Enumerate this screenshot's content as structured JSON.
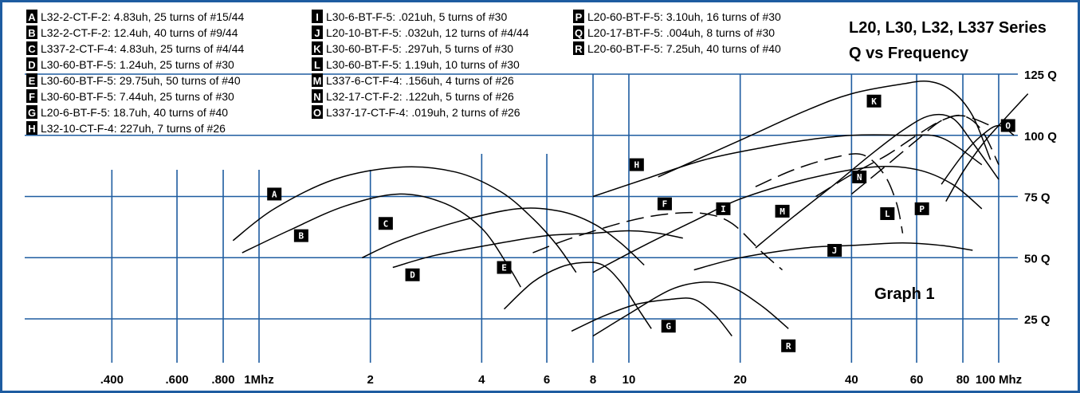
{
  "title_line1": "L20, L30, L32, L337 Series",
  "title_line2": "Q vs Frequency",
  "graph_label": "Graph 1",
  "colors": {
    "grid": "#1e5ca0",
    "curve": "#000000"
  },
  "chart_data": {
    "type": "line",
    "x_scale": "log",
    "xlim_mhz": [
      0.3,
      120
    ],
    "ylim": [
      0,
      125
    ],
    "x_ticks": [
      {
        "value": 0.4,
        "label": ".400"
      },
      {
        "value": 0.6,
        "label": ".600"
      },
      {
        "value": 0.8,
        "label": ".800"
      },
      {
        "value": 1,
        "label": "1Mhz"
      },
      {
        "value": 2,
        "label": "2"
      },
      {
        "value": 4,
        "label": "4"
      },
      {
        "value": 6,
        "label": "6"
      },
      {
        "value": 8,
        "label": "8"
      },
      {
        "value": 10,
        "label": "10"
      },
      {
        "value": 20,
        "label": "20"
      },
      {
        "value": 40,
        "label": "40"
      },
      {
        "value": 60,
        "label": "60"
      },
      {
        "value": 80,
        "label": "80"
      },
      {
        "value": 100,
        "label": "100 Mhz"
      }
    ],
    "y_ticks": [
      {
        "value": 25,
        "label": "25 Q"
      },
      {
        "value": 50,
        "label": "50 Q"
      },
      {
        "value": 75,
        "label": "75 Q"
      },
      {
        "value": 100,
        "label": "100 Q"
      },
      {
        "value": 125,
        "label": "125 Q"
      }
    ],
    "series": [
      {
        "letter": "A",
        "name": "L32-2-CT-F-2: 4.83uh, 25 turns of #15/44",
        "dashed": false,
        "label_at": [
          1.1,
          76
        ],
        "points": [
          [
            0.85,
            57
          ],
          [
            1.1,
            70
          ],
          [
            1.6,
            82
          ],
          [
            2.4,
            87
          ],
          [
            3.4,
            85
          ],
          [
            4.5,
            77
          ],
          [
            5.5,
            66
          ],
          [
            6.4,
            55
          ],
          [
            7.2,
            44
          ]
        ]
      },
      {
        "letter": "B",
        "name": "L32-2-CT-F-2: 12.4uh, 40 turns of #9/44",
        "dashed": false,
        "label_at": [
          1.3,
          59
        ],
        "points": [
          [
            0.9,
            52
          ],
          [
            1.2,
            61
          ],
          [
            1.7,
            71
          ],
          [
            2.4,
            76
          ],
          [
            3.2,
            72
          ],
          [
            4,
            62
          ],
          [
            4.7,
            47
          ],
          [
            5.1,
            38
          ]
        ]
      },
      {
        "letter": "C",
        "name": "L337-2-CT-F-4: 4.83uh, 25 turns of #4/44",
        "dashed": false,
        "label_at": [
          2.2,
          64
        ],
        "points": [
          [
            1.9,
            50
          ],
          [
            2.4,
            57
          ],
          [
            3.5,
            65
          ],
          [
            5,
            70
          ],
          [
            6.5,
            69
          ],
          [
            8,
            64
          ],
          [
            9.5,
            56
          ],
          [
            11,
            47
          ]
        ]
      },
      {
        "letter": "D",
        "name": "L30-60-BT-F-5: 1.24uh, 25 turns of #30",
        "dashed": false,
        "label_at": [
          2.6,
          43
        ],
        "points": [
          [
            2.3,
            46
          ],
          [
            3,
            51
          ],
          [
            4.5,
            56
          ],
          [
            6,
            59
          ],
          [
            8,
            60
          ],
          [
            10,
            61
          ],
          [
            12,
            60
          ],
          [
            14,
            58
          ]
        ]
      },
      {
        "letter": "E",
        "name": "L30-60-BT-F-5: 29.75uh, 50 turns of #40",
        "dashed": false,
        "label_at": [
          4.6,
          46
        ],
        "points": [
          [
            4.6,
            29
          ],
          [
            5.5,
            40
          ],
          [
            6.5,
            46
          ],
          [
            7.5,
            48
          ],
          [
            8.5,
            47
          ],
          [
            9.5,
            40
          ],
          [
            10.5,
            30
          ],
          [
            11.5,
            21
          ]
        ]
      },
      {
        "letter": "F",
        "name": "L30-60-BT-F-5: 7.44uh, 25 turns of #30",
        "dashed": true,
        "label_at": [
          12.5,
          72
        ],
        "points": [
          [
            5.5,
            52
          ],
          [
            7,
            58
          ],
          [
            10,
            65
          ],
          [
            13,
            68
          ],
          [
            16,
            68
          ],
          [
            19,
            64
          ],
          [
            23,
            52
          ],
          [
            26,
            45
          ]
        ]
      },
      {
        "letter": "G",
        "name": "L20-6-BT-F-5: 18.7uh, 40 turns of #40",
        "dashed": false,
        "label_at": [
          12.8,
          22
        ],
        "points": [
          [
            7,
            20
          ],
          [
            8.5,
            26
          ],
          [
            10.5,
            31
          ],
          [
            13,
            33
          ],
          [
            15,
            33
          ],
          [
            17,
            27
          ],
          [
            19,
            18
          ]
        ]
      },
      {
        "letter": "H",
        "name": "L32-10-CT-F-4: 227uh, 7 turns of #26",
        "dashed": false,
        "label_at": [
          10.5,
          88
        ],
        "points": [
          [
            8,
            75
          ],
          [
            11,
            82
          ],
          [
            16,
            90
          ],
          [
            23,
            95
          ],
          [
            30,
            98
          ],
          [
            40,
            100
          ],
          [
            55,
            100
          ],
          [
            70,
            99
          ],
          [
            90,
            88
          ]
        ]
      },
      {
        "letter": "I",
        "name": "L30-6-BT-F-5: .021uh, 5 turns of #30",
        "dashed": false,
        "label_at": [
          18,
          70
        ],
        "points": [
          [
            8,
            44
          ],
          [
            11,
            55
          ],
          [
            15,
            65
          ],
          [
            20,
            74
          ],
          [
            30,
            82
          ],
          [
            45,
            87
          ],
          [
            60,
            86
          ],
          [
            75,
            80
          ],
          [
            90,
            70
          ]
        ]
      },
      {
        "letter": "J",
        "name": "L20-10-BT-F-5: .032uh, 12 turns of #4/44",
        "dashed": false,
        "label_at": [
          36,
          53
        ],
        "points": [
          [
            15,
            45
          ],
          [
            20,
            50
          ],
          [
            30,
            54
          ],
          [
            40,
            55
          ],
          [
            55,
            56
          ],
          [
            70,
            55
          ],
          [
            85,
            53
          ]
        ]
      },
      {
        "letter": "K",
        "name": "L30-60-BT-F-5: .297uh, 5 turns of #30",
        "dashed": false,
        "label_at": [
          46,
          114
        ],
        "points": [
          [
            12,
            83
          ],
          [
            20,
            98
          ],
          [
            30,
            110
          ],
          [
            40,
            117
          ],
          [
            55,
            121
          ],
          [
            65,
            122
          ],
          [
            75,
            118
          ],
          [
            85,
            108
          ],
          [
            95,
            90
          ]
        ]
      },
      {
        "letter": "L",
        "name": "L30-60-BT-F-5: 1.19uh, 10 turns of #30",
        "dashed": true,
        "label_at": [
          50,
          68
        ],
        "points": [
          [
            22,
            79
          ],
          [
            28,
            86
          ],
          [
            36,
            91
          ],
          [
            43,
            92
          ],
          [
            49,
            84
          ],
          [
            53,
            72
          ],
          [
            55,
            60
          ]
        ]
      },
      {
        "letter": "M",
        "name": "L337-6-CT-F-4: .156uh, 4 turns of #26",
        "dashed": false,
        "label_at": [
          26,
          69
        ],
        "points": [
          [
            22,
            54
          ],
          [
            28,
            67
          ],
          [
            36,
            80
          ],
          [
            45,
            92
          ],
          [
            55,
            102
          ],
          [
            65,
            108
          ],
          [
            75,
            107
          ],
          [
            85,
            97
          ],
          [
            100,
            82
          ]
        ]
      },
      {
        "letter": "N",
        "name": "L32-17-CT-F-2: .122uh, 5 turns of #26",
        "dashed": true,
        "label_at": [
          42,
          83
        ],
        "points": [
          [
            32,
            75
          ],
          [
            40,
            84
          ],
          [
            50,
            92
          ],
          [
            60,
            100
          ],
          [
            70,
            106
          ],
          [
            80,
            108
          ],
          [
            90,
            102
          ],
          [
            100,
            88
          ]
        ]
      },
      {
        "letter": "O",
        "name": "L337-17-CT-F-4: .019uh, 2 turns of #26",
        "dashed": false,
        "label_at": [
          106,
          104
        ],
        "points": [
          [
            70,
            80
          ],
          [
            80,
            92
          ],
          [
            90,
            100
          ],
          [
            100,
            104
          ],
          [
            110,
            100
          ]
        ]
      },
      {
        "letter": "P",
        "name": "L20-60-BT-F-5: 3.10uh, 16 turns of #30",
        "dashed": false,
        "label_at": [
          62,
          70
        ],
        "points": [
          [
            72,
            73
          ],
          [
            80,
            85
          ],
          [
            90,
            96
          ],
          [
            100,
            104
          ],
          [
            120,
            117
          ]
        ]
      },
      {
        "letter": "Q",
        "name": "L20-17-BT-F-5: .004uh, 8 turns of #30",
        "dashed": true,
        "label_at": null,
        "points": [
          [
            40,
            76
          ],
          [
            50,
            88
          ],
          [
            60,
            98
          ],
          [
            70,
            106
          ],
          [
            80,
            108
          ],
          [
            95,
            104
          ]
        ]
      },
      {
        "letter": "R",
        "name": "L20-60-BT-F-5: 7.25uh, 40 turns of #40",
        "dashed": false,
        "label_at": [
          27,
          14
        ],
        "points": [
          [
            8,
            18
          ],
          [
            10,
            27
          ],
          [
            13,
            37
          ],
          [
            16,
            40
          ],
          [
            19,
            38
          ],
          [
            23,
            30
          ],
          [
            27,
            21
          ]
        ]
      }
    ]
  }
}
